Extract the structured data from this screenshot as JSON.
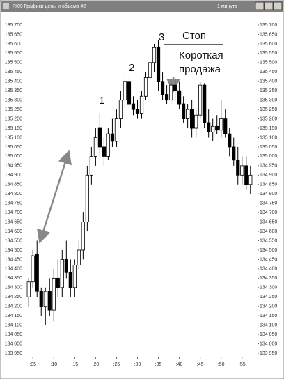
{
  "window_title": "RI09 Графики цены и объема #2",
  "window_interval": "1 минута",
  "chart_data": {
    "type": "candlestick",
    "annotations": [
      "1",
      "2",
      "3",
      "Стоп",
      "Короткая",
      "продажа"
    ],
    "x": [
      4,
      5,
      6,
      7,
      8,
      9,
      10,
      11,
      12,
      13,
      14,
      15,
      16,
      17,
      18,
      19,
      20,
      21,
      22,
      23,
      24,
      25,
      26,
      27,
      28,
      29,
      30,
      31,
      32,
      33,
      34,
      35,
      36,
      37,
      38,
      39,
      40,
      41,
      42,
      43,
      44,
      45,
      46,
      47,
      48,
      49,
      50,
      51,
      52,
      53,
      54,
      55,
      56,
      57
    ],
    "open": [
      134250,
      134330,
      134480,
      134280,
      134200,
      134280,
      134180,
      134350,
      134300,
      134450,
      134380,
      134300,
      134420,
      134500,
      134650,
      134900,
      135000,
      135150,
      135050,
      135000,
      135120,
      135080,
      135200,
      135300,
      135400,
      135280,
      135250,
      135230,
      135320,
      135420,
      135500,
      135580,
      135400,
      135330,
      135300,
      135380,
      135350,
      135280,
      135200,
      135250,
      135150,
      135220,
      135380,
      135180,
      135130,
      135160,
      135140,
      135200,
      135120,
      135050,
      134980,
      134900,
      134950,
      134850
    ],
    "high": [
      134350,
      134500,
      134550,
      134300,
      134300,
      134350,
      134400,
      134450,
      134500,
      134550,
      134450,
      134450,
      134550,
      134700,
      134950,
      135050,
      135150,
      135230,
      135100,
      135150,
      135200,
      135250,
      135350,
      135420,
      135430,
      135320,
      135300,
      135350,
      135450,
      135520,
      135600,
      135620,
      135450,
      135380,
      135400,
      135420,
      135400,
      135320,
      135280,
      135300,
      135250,
      135400,
      135390,
      135250,
      135200,
      135220,
      135300,
      135250,
      135150,
      135100,
      135050,
      135000,
      135000,
      134950
    ],
    "low": [
      134200,
      134300,
      134250,
      134150,
      134100,
      134150,
      134120,
      134250,
      134250,
      134350,
      134250,
      134250,
      134400,
      134450,
      134600,
      134850,
      134950,
      135000,
      134950,
      134980,
      135050,
      135050,
      135150,
      135250,
      135250,
      135220,
      135200,
      135200,
      135300,
      135380,
      135450,
      135350,
      135300,
      135280,
      135280,
      135300,
      135250,
      135180,
      135150,
      135100,
      135100,
      135200,
      135150,
      135100,
      135080,
      135120,
      135100,
      135100,
      135000,
      134950,
      134850,
      134850,
      134820,
      134800
    ],
    "close": [
      134330,
      134470,
      134280,
      134200,
      134280,
      134180,
      134350,
      134300,
      134450,
      134380,
      134300,
      134420,
      134500,
      134650,
      134900,
      135000,
      135100,
      135050,
      135000,
      135120,
      135080,
      135200,
      135300,
      135400,
      135280,
      135250,
      135230,
      135320,
      135420,
      135500,
      135580,
      135400,
      135330,
      135300,
      135380,
      135350,
      135280,
      135200,
      135250,
      135150,
      135220,
      135380,
      135180,
      135130,
      135160,
      135140,
      135200,
      135120,
      135050,
      134980,
      134900,
      134950,
      134850,
      134900
    ],
    "xlim": [
      2.8,
      58.7
    ],
    "xticks": [
      {
        "value": 5,
        "label": ":05"
      },
      {
        "value": 10,
        "label": ":10"
      },
      {
        "value": 15,
        "label": ":15"
      },
      {
        "value": 20,
        "label": ":20"
      },
      {
        "value": 25,
        "label": ":25"
      },
      {
        "value": 30,
        "label": ":30"
      },
      {
        "value": 35,
        "label": ":35"
      },
      {
        "value": 40,
        "label": ":40"
      },
      {
        "value": 45,
        "label": ":45"
      },
      {
        "value": 50,
        "label": ":50"
      },
      {
        "value": 55,
        "label": ":55"
      }
    ],
    "ylim": [
      133950,
      135700
    ],
    "yticks": [
      {
        "value": 133950,
        "label": "133 950"
      },
      {
        "value": 134000,
        "label": "134 000"
      },
      {
        "value": 134050,
        "label": "134 050"
      },
      {
        "value": 134100,
        "label": "134 100"
      },
      {
        "value": 134150,
        "label": "134 150"
      },
      {
        "value": 134200,
        "label": "134 200"
      },
      {
        "value": 134250,
        "label": "134 250"
      },
      {
        "value": 134300,
        "label": "134 300"
      },
      {
        "value": 134350,
        "label": "134 350"
      },
      {
        "value": 134400,
        "label": "134 400"
      },
      {
        "value": 134450,
        "label": "134 450"
      },
      {
        "value": 134500,
        "label": "134 500"
      },
      {
        "value": 134550,
        "label": "134 550"
      },
      {
        "value": 134600,
        "label": "134 600"
      },
      {
        "value": 134650,
        "label": "134 650"
      },
      {
        "value": 134700,
        "label": "134 700"
      },
      {
        "value": 134750,
        "label": "134 750"
      },
      {
        "value": 134800,
        "label": "134 800"
      },
      {
        "value": 134850,
        "label": "134 850"
      },
      {
        "value": 134900,
        "label": "134 900"
      },
      {
        "value": 134950,
        "label": "134 950"
      },
      {
        "value": 135000,
        "label": "135 000"
      },
      {
        "value": 135050,
        "label": "135 050"
      },
      {
        "value": 135100,
        "label": "135 100"
      },
      {
        "value": 135150,
        "label": "135 150"
      },
      {
        "value": 135200,
        "label": "135 200"
      },
      {
        "value": 135250,
        "label": "135 250"
      },
      {
        "value": 135300,
        "label": "135 300"
      },
      {
        "value": 135350,
        "label": "135 350"
      },
      {
        "value": 135400,
        "label": "135 400"
      },
      {
        "value": 135450,
        "label": "135 450"
      },
      {
        "value": 135500,
        "label": "135 500"
      },
      {
        "value": 135550,
        "label": "135 550"
      },
      {
        "value": 135600,
        "label": "135 600"
      },
      {
        "value": 135650,
        "label": "135 650"
      },
      {
        "value": 135700,
        "label": "135 700"
      }
    ],
    "up_color": "#ffffff",
    "down_color": "#000000"
  }
}
